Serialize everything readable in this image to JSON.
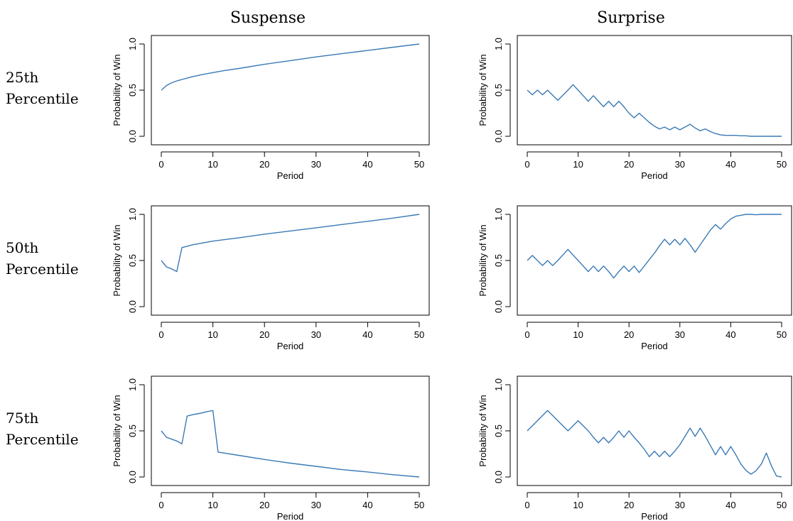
{
  "column_titles": [
    "Suspense",
    "Surprise"
  ],
  "row_labels": [
    {
      "line1": "25th",
      "line2": "Percentile"
    },
    {
      "line1": "50th",
      "line2": "Percentile"
    },
    {
      "line1": "75th",
      "line2": "Percentile"
    }
  ],
  "colors": {
    "line": "#3a7ab5",
    "axis": "#000000",
    "background": "#ffffff"
  },
  "chart_data": [
    {
      "type": "line",
      "column": "Suspense",
      "row": "25th Percentile",
      "xlabel": "Period",
      "ylabel": "Probability of Win",
      "xlim": [
        0,
        50
      ],
      "ylim": [
        0,
        1
      ],
      "xticks": [
        0,
        10,
        20,
        30,
        40,
        50
      ],
      "yticks": [
        0.0,
        0.5,
        1.0
      ],
      "xtick_labels": [
        "0",
        "10",
        "20",
        "30",
        "40",
        "50"
      ],
      "ytick_labels": [
        "0.0",
        "0.5",
        "1.0"
      ],
      "x": [
        0,
        1,
        2,
        3,
        4,
        5,
        6,
        8,
        10,
        12,
        15,
        20,
        25,
        30,
        35,
        40,
        45,
        50
      ],
      "y": [
        0.5,
        0.55,
        0.58,
        0.6,
        0.615,
        0.63,
        0.645,
        0.67,
        0.69,
        0.71,
        0.735,
        0.78,
        0.82,
        0.86,
        0.895,
        0.93,
        0.965,
        1.0
      ]
    },
    {
      "type": "line",
      "column": "Surprise",
      "row": "25th Percentile",
      "xlabel": "Period",
      "ylabel": "Probability of Win",
      "xlim": [
        0,
        50
      ],
      "ylim": [
        0,
        1
      ],
      "xticks": [
        0,
        10,
        20,
        30,
        40,
        50
      ],
      "yticks": [
        0.0,
        0.5,
        1.0
      ],
      "xtick_labels": [
        "0",
        "10",
        "20",
        "30",
        "40",
        "50"
      ],
      "ytick_labels": [
        "0.0",
        "0.5",
        "1.0"
      ],
      "x": [
        0,
        1,
        2,
        3,
        4,
        5,
        6,
        7,
        8,
        9,
        10,
        11,
        12,
        13,
        14,
        15,
        16,
        17,
        18,
        19,
        20,
        21,
        22,
        23,
        24,
        25,
        26,
        27,
        28,
        29,
        30,
        31,
        32,
        33,
        34,
        35,
        36,
        37,
        38,
        39,
        40,
        41,
        42,
        43,
        44,
        45,
        46,
        47,
        48,
        49,
        50
      ],
      "y": [
        0.5,
        0.45,
        0.5,
        0.45,
        0.5,
        0.445,
        0.39,
        0.445,
        0.5,
        0.56,
        0.5,
        0.44,
        0.38,
        0.44,
        0.38,
        0.32,
        0.38,
        0.32,
        0.38,
        0.32,
        0.25,
        0.2,
        0.25,
        0.2,
        0.15,
        0.11,
        0.08,
        0.1,
        0.07,
        0.1,
        0.07,
        0.1,
        0.13,
        0.09,
        0.06,
        0.08,
        0.05,
        0.03,
        0.015,
        0.01,
        0.01,
        0.01,
        0.005,
        0.005,
        0.0,
        0.0,
        0.0,
        0.0,
        0.0,
        0.0,
        0.0
      ]
    },
    {
      "type": "line",
      "column": "Suspense",
      "row": "50th Percentile",
      "xlabel": "Period",
      "ylabel": "Probability of Win",
      "xlim": [
        0,
        50
      ],
      "ylim": [
        0,
        1
      ],
      "xticks": [
        0,
        10,
        20,
        30,
        40,
        50
      ],
      "yticks": [
        0.0,
        0.5,
        1.0
      ],
      "xtick_labels": [
        "0",
        "10",
        "20",
        "30",
        "40",
        "50"
      ],
      "ytick_labels": [
        "0.0",
        "0.5",
        "1.0"
      ],
      "x": [
        0,
        1,
        2,
        3,
        4,
        5,
        6,
        8,
        10,
        12,
        15,
        20,
        25,
        30,
        35,
        40,
        45,
        50
      ],
      "y": [
        0.5,
        0.43,
        0.41,
        0.38,
        0.64,
        0.655,
        0.67,
        0.69,
        0.71,
        0.725,
        0.745,
        0.785,
        0.82,
        0.855,
        0.89,
        0.925,
        0.96,
        1.0
      ]
    },
    {
      "type": "line",
      "column": "Surprise",
      "row": "50th Percentile",
      "xlabel": "Period",
      "ylabel": "Probability of Win",
      "xlim": [
        0,
        50
      ],
      "ylim": [
        0,
        1
      ],
      "xticks": [
        0,
        10,
        20,
        30,
        40,
        50
      ],
      "yticks": [
        0.0,
        0.5,
        1.0
      ],
      "xtick_labels": [
        "0",
        "10",
        "20",
        "30",
        "40",
        "50"
      ],
      "ytick_labels": [
        "0.0",
        "0.5",
        "1.0"
      ],
      "x": [
        0,
        1,
        2,
        3,
        4,
        5,
        6,
        7,
        8,
        9,
        10,
        11,
        12,
        13,
        14,
        15,
        16,
        17,
        18,
        19,
        20,
        21,
        22,
        23,
        24,
        25,
        26,
        27,
        28,
        29,
        30,
        31,
        32,
        33,
        34,
        35,
        36,
        37,
        38,
        39,
        40,
        41,
        42,
        43,
        44,
        45,
        46,
        47,
        48,
        49,
        50
      ],
      "y": [
        0.5,
        0.555,
        0.5,
        0.445,
        0.5,
        0.445,
        0.5,
        0.56,
        0.62,
        0.56,
        0.5,
        0.44,
        0.38,
        0.44,
        0.38,
        0.44,
        0.38,
        0.31,
        0.38,
        0.44,
        0.38,
        0.44,
        0.37,
        0.44,
        0.51,
        0.58,
        0.66,
        0.73,
        0.67,
        0.73,
        0.67,
        0.74,
        0.67,
        0.59,
        0.67,
        0.75,
        0.83,
        0.89,
        0.84,
        0.9,
        0.95,
        0.98,
        0.99,
        1.0,
        1.0,
        0.995,
        1.0,
        1.0,
        1.0,
        1.0,
        1.0
      ]
    },
    {
      "type": "line",
      "column": "Suspense",
      "row": "75th Percentile",
      "xlabel": "Period",
      "ylabel": "Probability of Win",
      "xlim": [
        0,
        50
      ],
      "ylim": [
        0,
        1
      ],
      "xticks": [
        0,
        10,
        20,
        30,
        40,
        50
      ],
      "yticks": [
        0.0,
        0.5,
        1.0
      ],
      "xtick_labels": [
        "0",
        "10",
        "20",
        "30",
        "40",
        "50"
      ],
      "ytick_labels": [
        "0.0",
        "0.5",
        "1.0"
      ],
      "x": [
        0,
        1,
        2,
        3,
        4,
        5,
        6,
        7,
        8,
        9,
        10,
        11,
        15,
        20,
        25,
        30,
        35,
        40,
        45,
        50
      ],
      "y": [
        0.5,
        0.43,
        0.41,
        0.39,
        0.36,
        0.66,
        0.675,
        0.685,
        0.695,
        0.71,
        0.72,
        0.27,
        0.235,
        0.19,
        0.15,
        0.115,
        0.08,
        0.055,
        0.025,
        0.0
      ]
    },
    {
      "type": "line",
      "column": "Surprise",
      "row": "75th Percentile",
      "xlabel": "Period",
      "ylabel": "Probability of Win",
      "xlim": [
        0,
        50
      ],
      "ylim": [
        0,
        1
      ],
      "xticks": [
        0,
        10,
        20,
        30,
        40,
        50
      ],
      "yticks": [
        0.0,
        0.5,
        1.0
      ],
      "xtick_labels": [
        "0",
        "10",
        "20",
        "30",
        "40",
        "50"
      ],
      "ytick_labels": [
        "0.0",
        "0.5",
        "1.0"
      ],
      "x": [
        0,
        1,
        2,
        3,
        4,
        5,
        6,
        7,
        8,
        9,
        10,
        11,
        12,
        13,
        14,
        15,
        16,
        17,
        18,
        19,
        20,
        21,
        22,
        23,
        24,
        25,
        26,
        27,
        28,
        29,
        30,
        31,
        32,
        33,
        34,
        35,
        36,
        37,
        38,
        39,
        40,
        41,
        42,
        43,
        44,
        45,
        46,
        47,
        48,
        49,
        50
      ],
      "y": [
        0.5,
        0.555,
        0.61,
        0.665,
        0.72,
        0.665,
        0.61,
        0.555,
        0.5,
        0.555,
        0.61,
        0.555,
        0.5,
        0.43,
        0.37,
        0.43,
        0.37,
        0.43,
        0.5,
        0.43,
        0.5,
        0.43,
        0.37,
        0.3,
        0.22,
        0.28,
        0.22,
        0.28,
        0.22,
        0.28,
        0.35,
        0.44,
        0.53,
        0.44,
        0.53,
        0.44,
        0.34,
        0.24,
        0.33,
        0.24,
        0.33,
        0.24,
        0.14,
        0.07,
        0.03,
        0.07,
        0.14,
        0.26,
        0.12,
        0.01,
        0.0
      ]
    }
  ]
}
